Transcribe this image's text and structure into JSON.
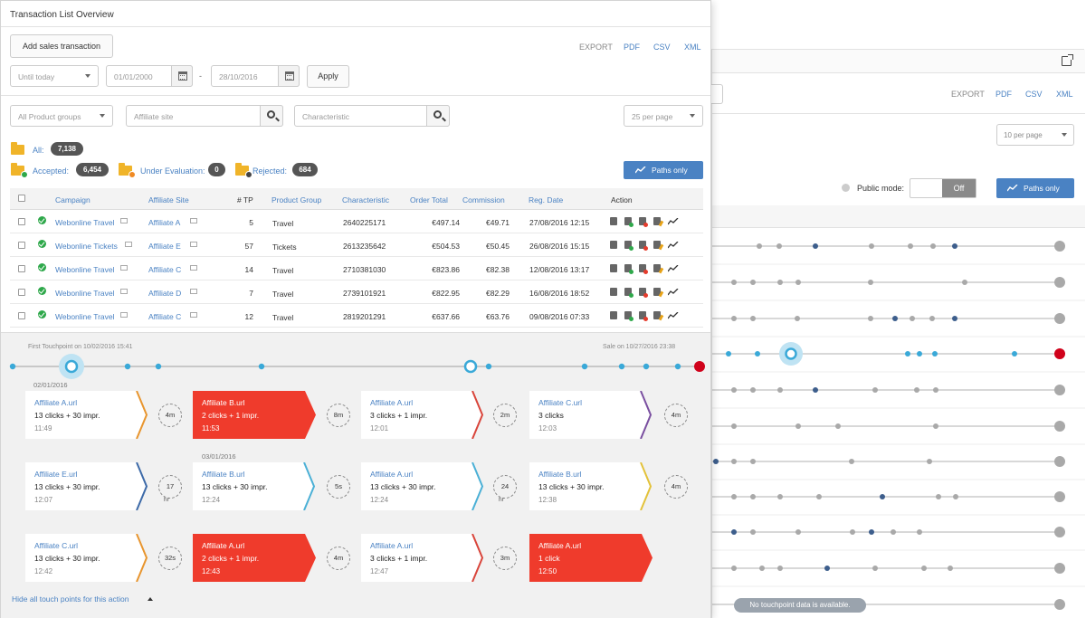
{
  "window_title": "Transaction List Overview",
  "add_button": "Add sales transaction",
  "export": {
    "label": "EXPORT",
    "pdf": "PDF",
    "csv": "CSV",
    "xml": "XML"
  },
  "filters": {
    "period": "Until today",
    "date_from": "01/01/2000",
    "date_sep": "-",
    "date_to": "28/10/2016",
    "apply": "Apply",
    "product_groups": "All Product groups",
    "affiliate_placeholder": "Affiliate site",
    "characteristic_placeholder": "Characteristic",
    "per_page": "25 per page"
  },
  "folders": {
    "all_label": "All:",
    "all_count": "7,138",
    "accepted_label": "Accepted:",
    "accepted_count": "6,454",
    "under_label": "Under Evaluation:",
    "under_count": "0",
    "rejected_label": "Rejected:",
    "rejected_count": "684"
  },
  "paths_only": "Paths only",
  "table": {
    "headers": {
      "campaign": "Campaign",
      "affiliate": "Affiliate Site",
      "tp": "# TP",
      "product": "Product Group",
      "characteristic": "Characteristic",
      "order_total": "Order Total",
      "commission": "Commission",
      "reg_date": "Reg. Date",
      "action": "Action"
    },
    "rows": [
      {
        "campaign": "Webonline Travel",
        "affiliate": "Affiliate A",
        "tp": "5",
        "product": "Travel",
        "characteristic": "2640225171",
        "order_total": "€497.14",
        "commission": "€49.71",
        "reg_date": "27/08/2016 12:15"
      },
      {
        "campaign": "Webonline Tickets",
        "affiliate": "Affiliate E",
        "tp": "57",
        "product": "Tickets",
        "characteristic": "2613235642",
        "order_total": "€504.53",
        "commission": "€50.45",
        "reg_date": "26/08/2016 15:15"
      },
      {
        "campaign": "Webonline Travel",
        "affiliate": "Affiliate C",
        "tp": "14",
        "product": "Travel",
        "characteristic": "2710381030",
        "order_total": "€823.86",
        "commission": "€82.38",
        "reg_date": "12/08/2016 13:17"
      },
      {
        "campaign": "Webonline Travel",
        "affiliate": "Affiliate D",
        "tp": "7",
        "product": "Travel",
        "characteristic": "2739101921",
        "order_total": "€822.95",
        "commission": "€82.29",
        "reg_date": "16/08/2016 18:52"
      },
      {
        "campaign": "Webonline Travel",
        "affiliate": "Affiliate C",
        "tp": "12",
        "product": "Travel",
        "characteristic": "2819201291",
        "order_total": "€637.66",
        "commission": "€63.76",
        "reg_date": "09/08/2016 07:33"
      }
    ]
  },
  "touchpoints": {
    "first_note": "First Touchpoint on 10/02/2016 15:41",
    "sale_note": "Sale on 10/27/2016 23:38",
    "date1": "02/01/2016",
    "date2": "03/01/2016",
    "cards": [
      {
        "title": "Affiliate A.url",
        "detail": "13 clicks + 30 impr.",
        "time": "11:49",
        "red": false,
        "arrow": "#e8952e"
      },
      {
        "title": "Affiliate B.url",
        "detail": "2 clicks + 1 impr.",
        "time": "11:53",
        "red": true,
        "arrow": ""
      },
      {
        "title": "Affiliate A.url",
        "detail": "3 clicks + 1 impr.",
        "time": "12:01",
        "red": false,
        "arrow": "#d9453b"
      },
      {
        "title": "Affiliate C.url",
        "detail": "3 clicks",
        "time": "12:03",
        "red": false,
        "arrow": "#7a4fa0"
      },
      {
        "title": "Affiliate E.url",
        "detail": "13 clicks + 30 impr.",
        "time": "12:07",
        "red": false,
        "arrow": "#3d6aa8"
      },
      {
        "title": "Affiliate B.url",
        "detail": "13 clicks + 30 impr.",
        "time": "12:24",
        "red": false,
        "arrow": "#4bb0d6"
      },
      {
        "title": "Affiliate A.url",
        "detail": "13 clicks + 30 impr.",
        "time": "12:24",
        "red": false,
        "arrow": "#4bb0d6"
      },
      {
        "title": "Affiliate B.url",
        "detail": "13 clicks + 30 impr.",
        "time": "12:38",
        "red": false,
        "arrow": "#e3c23a"
      },
      {
        "title": "Affiliate C.url",
        "detail": "13 clicks + 30 impr.",
        "time": "12:42",
        "red": false,
        "arrow": "#e8952e"
      },
      {
        "title": "Affiliate A.url",
        "detail": "2 clicks + 1 impr.",
        "time": "12:43",
        "red": true,
        "arrow": ""
      },
      {
        "title": "Affiliate A.url",
        "detail": "3 clicks + 1 impr.",
        "time": "12:47",
        "red": false,
        "arrow": "#d9453b"
      },
      {
        "title": "Affiliate A.url",
        "detail": "1 click",
        "time": "12:50",
        "red": true,
        "arrow": ""
      }
    ],
    "gaps": [
      {
        "label": "4m",
        "sub": ""
      },
      {
        "label": "8m",
        "sub": ""
      },
      {
        "label": "2m",
        "sub": ""
      },
      {
        "label": "4m",
        "sub": ""
      },
      {
        "label": "17",
        "sub": "hr"
      },
      {
        "label": "5s",
        "sub": ""
      },
      {
        "label": "24",
        "sub": "hr"
      },
      {
        "label": "4m",
        "sub": ""
      },
      {
        "label": "32s",
        "sub": ""
      },
      {
        "label": "4m",
        "sub": ""
      },
      {
        "label": "3m",
        "sub": ""
      }
    ],
    "hide_link": "Hide all touch points for this action"
  },
  "bg_window": {
    "export": "EXPORT",
    "pdf": "PDF",
    "csv": "CSV",
    "xml": "XML",
    "per_page": "10 per page",
    "public_mode": "Public mode:",
    "toggle_off": "Off",
    "paths_only": "Paths only",
    "no_data": "No touchpoint data is available."
  },
  "colors": {
    "accent": "#4a82c3",
    "sale": "#d0021b",
    "red_card": "#ef3b2c",
    "accepted": "#2ea84a"
  }
}
